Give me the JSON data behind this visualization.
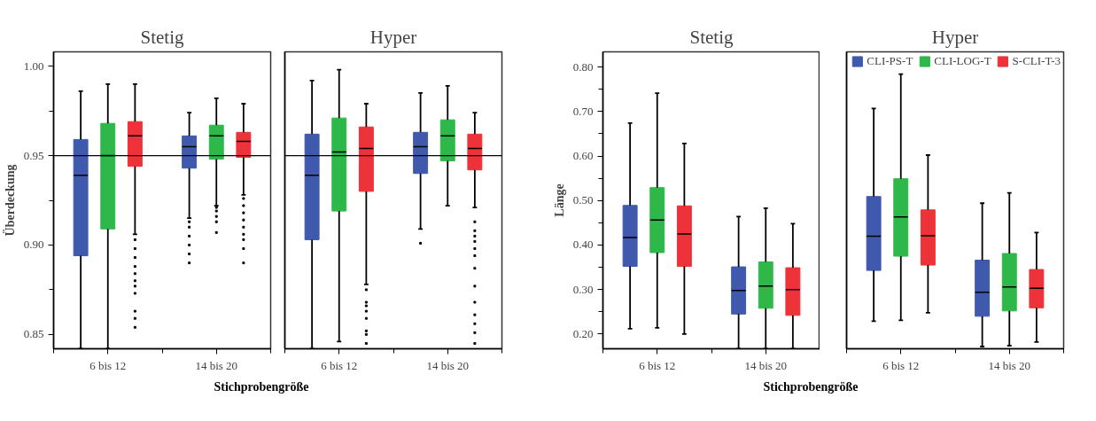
{
  "chart_data": [
    {
      "type": "box",
      "title": "Stetig",
      "xlabel": "Stichprobengröße",
      "ylabel": "Überdeckung",
      "categories": [
        "6 bis 12",
        "14 bis 20"
      ],
      "ylim": [
        0.842,
        1.008
      ],
      "yticks": [
        {
          "value": 0.85,
          "label": "0.85"
        },
        {
          "value": 0.9,
          "label": "0.90"
        },
        {
          "value": 0.95,
          "label": "0.95"
        },
        {
          "value": 1.0,
          "label": "1.00"
        }
      ],
      "ref_lines": [
        {
          "axis": "y",
          "value": 0.95,
          "color": "#000000"
        }
      ],
      "series": [
        {
          "color": "#3f59ad",
          "boxes": [
            {
              "low": 0.842,
              "q1": 0.894,
              "median": 0.939,
              "q3": 0.959,
              "high": 0.986
            },
            {
              "low": 0.915,
              "q1": 0.943,
              "median": 0.955,
              "q3": 0.961,
              "high": 0.974,
              "outliers": [
                0.913,
                0.91,
                0.905,
                0.9,
                0.895,
                0.89
              ]
            }
          ]
        },
        {
          "color": "#2eb84a",
          "boxes": [
            {
              "low": 0.842,
              "q1": 0.909,
              "median": 0.95,
              "q3": 0.968,
              "high": 0.99
            },
            {
              "low": 0.922,
              "q1": 0.948,
              "median": 0.961,
              "q3": 0.967,
              "high": 0.982,
              "outliers": [
                0.921,
                0.919,
                0.916,
                0.913,
                0.907
              ]
            }
          ]
        },
        {
          "color": "#ee3239",
          "boxes": [
            {
              "low": 0.906,
              "q1": 0.944,
              "median": 0.961,
              "q3": 0.969,
              "high": 0.99,
              "outliers": [
                0.903,
                0.898,
                0.893,
                0.888,
                0.884,
                0.88,
                0.877,
                0.873,
                0.863,
                0.859,
                0.854
              ]
            },
            {
              "low": 0.928,
              "q1": 0.949,
              "median": 0.958,
              "q3": 0.963,
              "high": 0.979,
              "outliers": [
                0.926,
                0.922,
                0.918,
                0.914,
                0.91,
                0.906,
                0.903,
                0.898,
                0.89
              ]
            }
          ]
        }
      ]
    },
    {
      "type": "box",
      "title": "Hyper",
      "categories": [
        "6 bis 12",
        "14 bis 20"
      ],
      "ylim": [
        0.842,
        1.008
      ],
      "tick_labels": "x",
      "ref_lines": [
        {
          "axis": "y",
          "value": 0.95,
          "color": "#000000"
        }
      ],
      "series": [
        {
          "color": "#3f59ad",
          "boxes": [
            {
              "low": 0.842,
              "q1": 0.903,
              "median": 0.939,
              "q3": 0.962,
              "high": 0.992
            },
            {
              "low": 0.909,
              "q1": 0.94,
              "median": 0.955,
              "q3": 0.963,
              "high": 0.985,
              "outliers": [
                0.901
              ]
            }
          ]
        },
        {
          "color": "#2eb84a",
          "boxes": [
            {
              "low": 0.846,
              "q1": 0.919,
              "median": 0.952,
              "q3": 0.971,
              "high": 0.998
            },
            {
              "low": 0.922,
              "q1": 0.947,
              "median": 0.961,
              "q3": 0.97,
              "high": 0.989
            }
          ]
        },
        {
          "color": "#ee3239",
          "boxes": [
            {
              "low": 0.878,
              "q1": 0.93,
              "median": 0.954,
              "q3": 0.966,
              "high": 0.979,
              "outliers": [
                0.875,
                0.868,
                0.866,
                0.863,
                0.859,
                0.852,
                0.85,
                0.845
              ]
            },
            {
              "low": 0.921,
              "q1": 0.942,
              "median": 0.954,
              "q3": 0.962,
              "high": 0.974,
              "outliers": [
                0.913,
                0.908,
                0.905,
                0.902,
                0.898,
                0.894,
                0.887,
                0.877,
                0.868,
                0.861,
                0.856,
                0.851,
                0.845
              ]
            }
          ]
        }
      ]
    },
    {
      "type": "box",
      "title": "Stetig",
      "xlabel": "Stichprobengröße",
      "ylabel": "Länge",
      "categories": [
        "6 bis 12",
        "14 bis 20"
      ],
      "ylim": [
        0.167,
        0.834
      ],
      "yticks": [
        {
          "value": 0.2,
          "label": "0.20"
        },
        {
          "value": 0.3,
          "label": "0.30"
        },
        {
          "value": 0.4,
          "label": "0.40"
        },
        {
          "value": 0.5,
          "label": "0.50"
        },
        {
          "value": 0.6,
          "label": "0.60"
        },
        {
          "value": 0.7,
          "label": "0.70"
        },
        {
          "value": 0.8,
          "label": "0.80"
        }
      ],
      "series": [
        {
          "color": "#3f59ad",
          "boxes": [
            {
              "low": 0.212,
              "q1": 0.352,
              "median": 0.417,
              "q3": 0.489,
              "high": 0.674
            },
            {
              "low": 0.167,
              "q1": 0.245,
              "median": 0.298,
              "q3": 0.351,
              "high": 0.464
            }
          ]
        },
        {
          "color": "#2eb84a",
          "boxes": [
            {
              "low": 0.214,
              "q1": 0.383,
              "median": 0.456,
              "q3": 0.529,
              "high": 0.741
            },
            {
              "low": 0.167,
              "q1": 0.258,
              "median": 0.308,
              "q3": 0.362,
              "high": 0.483
            }
          ]
        },
        {
          "color": "#ee3239",
          "boxes": [
            {
              "low": 0.2,
              "q1": 0.352,
              "median": 0.425,
              "q3": 0.488,
              "high": 0.628
            },
            {
              "low": 0.167,
              "q1": 0.242,
              "median": 0.3,
              "q3": 0.349,
              "high": 0.448
            }
          ]
        }
      ]
    },
    {
      "type": "box",
      "title": "Hyper",
      "categories": [
        "6 bis 12",
        "14 bis 20"
      ],
      "ylim": [
        0.167,
        0.834
      ],
      "tick_labels": "x",
      "legend": "top right",
      "series": [
        {
          "name": "CLI-PS-T",
          "color": "#3f59ad",
          "boxes": [
            {
              "low": 0.229,
              "q1": 0.343,
              "median": 0.42,
              "q3": 0.509,
              "high": 0.707
            },
            {
              "low": 0.172,
              "q1": 0.24,
              "median": 0.294,
              "q3": 0.366,
              "high": 0.494
            }
          ]
        },
        {
          "name": "CLI-LOG-T",
          "color": "#2eb84a",
          "boxes": [
            {
              "low": 0.231,
              "q1": 0.375,
              "median": 0.463,
              "q3": 0.549,
              "high": 0.784
            },
            {
              "low": 0.174,
              "q1": 0.252,
              "median": 0.306,
              "q3": 0.381,
              "high": 0.517
            }
          ]
        },
        {
          "name": "S-CLI-T-3",
          "color": "#ee3239",
          "boxes": [
            {
              "low": 0.248,
              "q1": 0.355,
              "median": 0.421,
              "q3": 0.479,
              "high": 0.602
            },
            {
              "low": 0.182,
              "q1": 0.259,
              "median": 0.303,
              "q3": 0.345,
              "high": 0.428
            }
          ]
        }
      ]
    }
  ]
}
